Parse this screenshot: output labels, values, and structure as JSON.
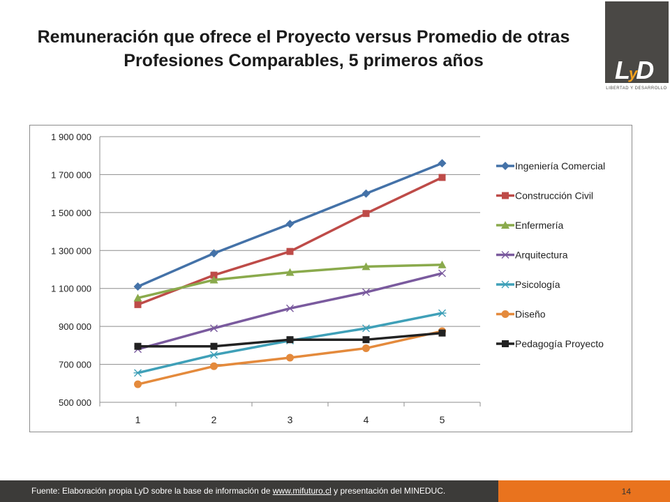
{
  "header": {
    "title_line1": "Remuneración que ofrece el Proyecto versus Promedio de otras",
    "title_line2": "Profesiones Comparables, 5 primeros años",
    "logo_text": "LyD",
    "logo_subtext": "LIBERTAD Y DESARROLLO"
  },
  "footer": {
    "source_prefix": "Fuente: Elaboración propia LyD sobre la base de información de ",
    "source_link": "www.mifuturo.cl",
    "source_suffix": " y presentación del MINEDUC.",
    "page_number": "14"
  },
  "colors": {
    "footer_bg": "#3c3b39",
    "page_box": "#e9731e",
    "logo_bg": "#4a4845"
  },
  "chart_data": {
    "type": "line",
    "x": [
      1,
      2,
      3,
      4,
      5
    ],
    "y_ticks": [
      "500 000",
      "700 000",
      "900 000",
      "1 100 000",
      "1 300 000",
      "1 500 000",
      "1 700 000",
      "1 900 000"
    ],
    "ylim": [
      500000,
      1900000
    ],
    "grid": true,
    "legend_position": "right",
    "series": [
      {
        "name": "Ingeniería Comercial",
        "color": "#4472a8",
        "marker": "diamond",
        "values": [
          1110000,
          1285000,
          1440000,
          1600000,
          1760000
        ]
      },
      {
        "name": "Construcción Civil",
        "color": "#be4b48",
        "marker": "square",
        "values": [
          1015000,
          1170000,
          1295000,
          1495000,
          1685000
        ]
      },
      {
        "name": "Enfermería",
        "color": "#8aaa4c",
        "marker": "triangle",
        "values": [
          1050000,
          1145000,
          1185000,
          1215000,
          1225000
        ]
      },
      {
        "name": "Arquitectura",
        "color": "#7a5a9e",
        "marker": "x",
        "values": [
          780000,
          890000,
          995000,
          1080000,
          1180000
        ]
      },
      {
        "name": "Psicología",
        "color": "#3fa0b8",
        "marker": "star",
        "values": [
          655000,
          750000,
          825000,
          890000,
          970000
        ]
      },
      {
        "name": "Diseño",
        "color": "#e48a3c",
        "marker": "circle",
        "values": [
          595000,
          690000,
          735000,
          785000,
          875000
        ]
      },
      {
        "name": "Pedagogía Proyecto",
        "color": "#222222",
        "marker": "square",
        "values": [
          795000,
          795000,
          830000,
          830000,
          865000
        ]
      }
    ]
  }
}
